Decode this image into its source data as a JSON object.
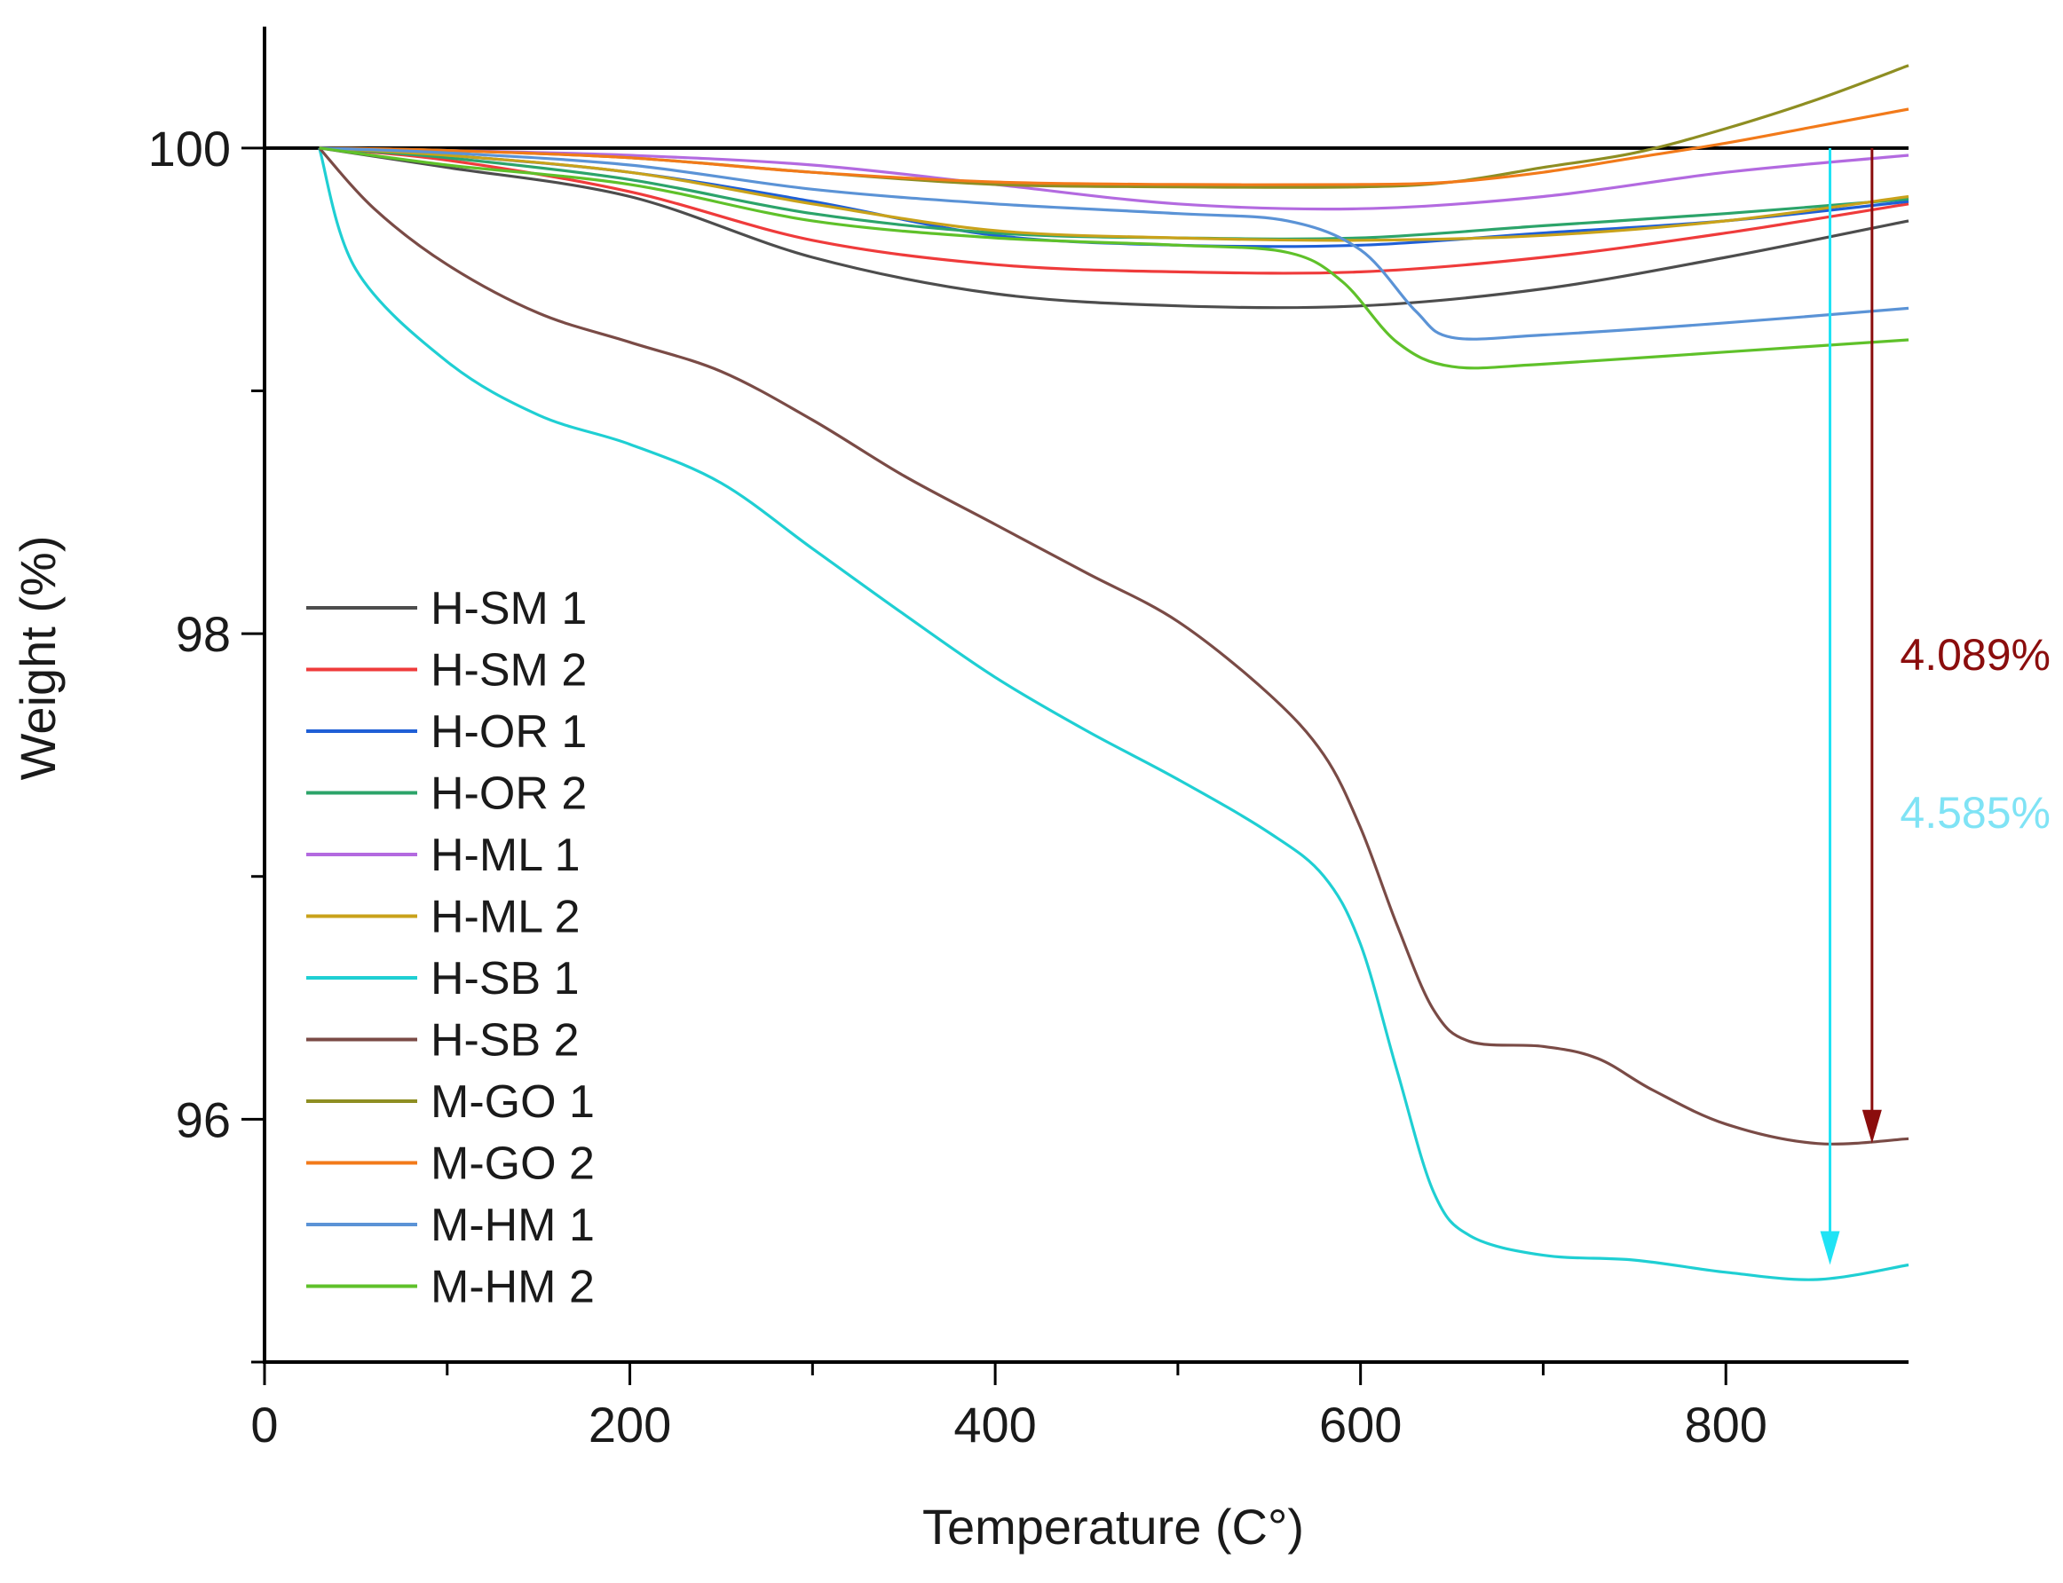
{
  "chart_data": {
    "type": "line",
    "xlabel": "Temperature (C°)",
    "ylabel": "Weight (%)",
    "xlim": [
      0,
      900
    ],
    "ylim": [
      95.0,
      100.5
    ],
    "x_ticks": [
      0,
      200,
      400,
      600,
      800
    ],
    "x_minor_ticks": [
      100,
      300,
      500,
      700
    ],
    "y_ticks": [
      96,
      98,
      100
    ],
    "y_minor_ticks": [
      95,
      97,
      99
    ],
    "reference_line": 100,
    "legend_position": "center-left",
    "series": [
      {
        "name": "H-SM 1",
        "color": "#4d4d4d",
        "x": [
          30,
          100,
          200,
          300,
          400,
          500,
          600,
          700,
          800,
          900
        ],
        "y": [
          100.0,
          99.92,
          99.8,
          99.55,
          99.4,
          99.35,
          99.35,
          99.42,
          99.55,
          99.7
        ]
      },
      {
        "name": "H-SM 2",
        "color": "#ef3b3b",
        "x": [
          30,
          100,
          200,
          300,
          400,
          500,
          600,
          700,
          800,
          900
        ],
        "y": [
          100.0,
          99.95,
          99.82,
          99.62,
          99.52,
          99.49,
          99.49,
          99.55,
          99.65,
          99.77
        ]
      },
      {
        "name": "H-OR 1",
        "color": "#1f5fd6",
        "x": [
          30,
          100,
          200,
          300,
          400,
          500,
          600,
          700,
          800,
          900
        ],
        "y": [
          100.0,
          99.97,
          99.9,
          99.78,
          99.64,
          99.6,
          99.6,
          99.65,
          99.7,
          99.78
        ]
      },
      {
        "name": "H-OR 2",
        "color": "#2ca46a",
        "x": [
          30,
          100,
          200,
          300,
          400,
          500,
          600,
          700,
          800,
          900
        ],
        "y": [
          100.0,
          99.96,
          99.87,
          99.73,
          99.65,
          99.63,
          99.63,
          99.68,
          99.73,
          99.79
        ]
      },
      {
        "name": "H-ML 1",
        "color": "#b36ae0",
        "x": [
          30,
          100,
          200,
          300,
          400,
          500,
          600,
          700,
          800,
          900
        ],
        "y": [
          100.0,
          99.99,
          99.97,
          99.93,
          99.85,
          99.77,
          99.75,
          99.8,
          99.9,
          99.97
        ]
      },
      {
        "name": "H-ML 2",
        "color": "#c9a21a",
        "x": [
          30,
          100,
          200,
          300,
          400,
          500,
          600,
          700,
          800,
          900
        ],
        "y": [
          100.0,
          99.97,
          99.9,
          99.77,
          99.66,
          99.63,
          99.62,
          99.64,
          99.7,
          99.8
        ]
      },
      {
        "name": "H-SB 1",
        "color": "#1fcfd3",
        "x": [
          30,
          50,
          100,
          150,
          200,
          250,
          300,
          350,
          400,
          450,
          500,
          550,
          580,
          600,
          620,
          640,
          660,
          700,
          750,
          800,
          850,
          900
        ],
        "y": [
          100.0,
          99.5,
          99.12,
          98.9,
          98.78,
          98.62,
          98.35,
          98.08,
          97.82,
          97.6,
          97.4,
          97.18,
          97.0,
          96.72,
          96.2,
          95.7,
          95.52,
          95.44,
          95.42,
          95.37,
          95.34,
          95.4
        ]
      },
      {
        "name": "H-SB 2",
        "color": "#7a4b46",
        "x": [
          30,
          60,
          100,
          150,
          200,
          250,
          300,
          350,
          400,
          450,
          500,
          550,
          580,
          600,
          620,
          640,
          660,
          700,
          730,
          760,
          800,
          850,
          900
        ],
        "y": [
          100.0,
          99.75,
          99.52,
          99.32,
          99.2,
          99.08,
          98.88,
          98.65,
          98.45,
          98.25,
          98.05,
          97.75,
          97.5,
          97.2,
          96.8,
          96.45,
          96.32,
          96.3,
          96.25,
          96.12,
          95.98,
          95.9,
          95.92
        ]
      },
      {
        "name": "M-GO 1",
        "color": "#8e8e22",
        "x": [
          30,
          100,
          200,
          300,
          400,
          500,
          600,
          650,
          700,
          750,
          800,
          850,
          900
        ],
        "y": [
          100.0,
          99.99,
          99.96,
          99.9,
          99.85,
          99.84,
          99.84,
          99.86,
          99.92,
          99.98,
          100.08,
          100.2,
          100.34
        ]
      },
      {
        "name": "M-GO 2",
        "color": "#f27a1a",
        "x": [
          30,
          100,
          200,
          300,
          400,
          500,
          600,
          650,
          700,
          750,
          800,
          850,
          900
        ],
        "y": [
          100.0,
          99.99,
          99.96,
          99.9,
          99.86,
          99.85,
          99.85,
          99.86,
          99.9,
          99.96,
          100.02,
          100.09,
          100.16
        ]
      },
      {
        "name": "M-HM 1",
        "color": "#5b93d6",
        "x": [
          30,
          100,
          200,
          300,
          400,
          500,
          560,
          600,
          630,
          650,
          700,
          800,
          900
        ],
        "y": [
          100.0,
          99.98,
          99.93,
          99.83,
          99.77,
          99.73,
          99.7,
          99.58,
          99.33,
          99.22,
          99.23,
          99.28,
          99.34
        ]
      },
      {
        "name": "M-HM 2",
        "color": "#5fc12a",
        "x": [
          30,
          100,
          200,
          300,
          400,
          500,
          560,
          590,
          620,
          650,
          700,
          800,
          900
        ],
        "y": [
          100.0,
          99.93,
          99.85,
          99.7,
          99.63,
          99.6,
          99.57,
          99.45,
          99.2,
          99.1,
          99.11,
          99.16,
          99.21
        ]
      }
    ],
    "annotations": [
      {
        "label": "4.089%",
        "color": "#8b0d0d",
        "x": 880,
        "y_from": 100.0,
        "y_to": 95.9
      },
      {
        "label": "4.585%",
        "color": "#7fe3f5",
        "arrow_color": "#1fe3f5",
        "x": 857,
        "y_from": 100.0,
        "y_to": 95.4
      }
    ]
  }
}
